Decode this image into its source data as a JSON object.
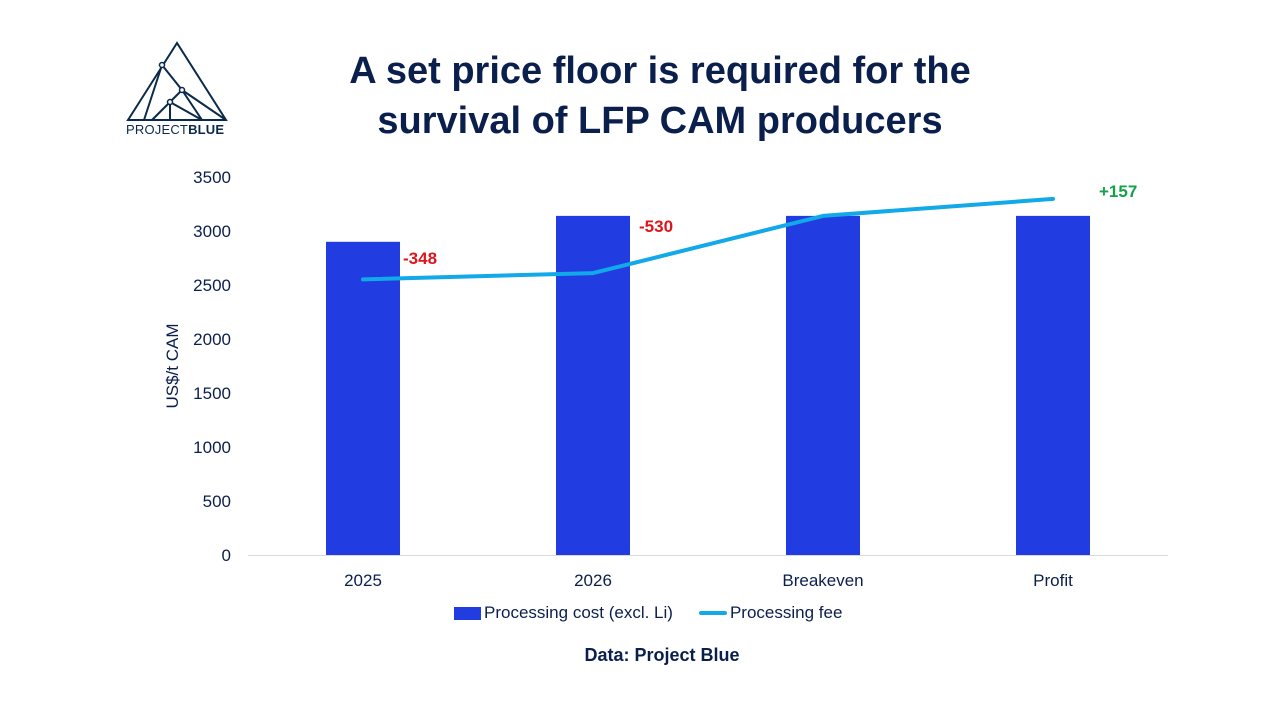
{
  "brand": {
    "name_light": "PROJECT",
    "name_bold": "BLUE"
  },
  "title_lines": [
    "A set price floor is required for the",
    "survival of LFP CAM producers"
  ],
  "source": "Data: Project Blue",
  "colors": {
    "bar": "#213ce1",
    "line": "#11a9e8",
    "negative": "#e0141b",
    "positive": "#13a24a",
    "text": "#0b1f4d",
    "axis": "#d9d9d9"
  },
  "chart_data": {
    "type": "bar",
    "title": "A set price floor is required for the survival of LFP CAM producers",
    "xlabel": "",
    "ylabel": "US$/t CAM",
    "ylim": [
      0,
      3500
    ],
    "yticks": [
      0,
      500,
      1000,
      1500,
      2000,
      2500,
      3000,
      3500
    ],
    "grid": false,
    "legend": "bottom",
    "categories": [
      "2025",
      "2026",
      "Breakeven",
      "Profit"
    ],
    "series": [
      {
        "name": "Processing cost (excl. Li)",
        "type": "bar",
        "values": [
          2900,
          3140,
          3140,
          3140
        ]
      },
      {
        "name": "Processing fee",
        "type": "line",
        "values": [
          2552,
          2610,
          3140,
          3297
        ]
      }
    ],
    "annotations": [
      {
        "category": "2025",
        "text": "-348",
        "tone": "negative"
      },
      {
        "category": "2026",
        "text": "-530",
        "tone": "negative"
      },
      {
        "category": "Profit",
        "text": "+157",
        "tone": "positive"
      }
    ]
  }
}
